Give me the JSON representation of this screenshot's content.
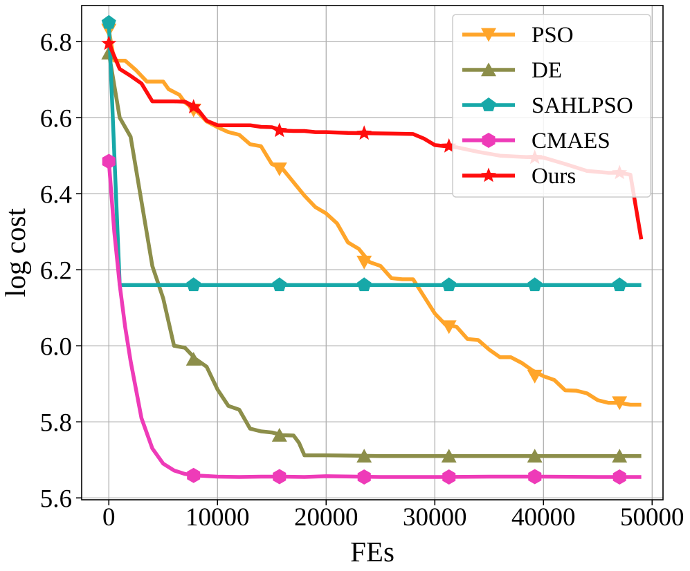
{
  "chart_data": {
    "type": "line",
    "title": "",
    "xlabel": "FEs",
    "ylabel": "log cost",
    "xlim": [
      -2500,
      51000
    ],
    "ylim": [
      5.595,
      6.895
    ],
    "grid": true,
    "legend_position": "top-right",
    "xticks": [
      0,
      10000,
      20000,
      30000,
      40000,
      50000
    ],
    "xtick_labels": [
      "0",
      "10000",
      "20000",
      "30000",
      "40000",
      "50000"
    ],
    "yticks": [
      5.6,
      5.8,
      6.0,
      6.2,
      6.4,
      6.6,
      6.8
    ],
    "ytick_labels": [
      "5.6",
      "5.8",
      "6.0",
      "6.2",
      "6.4",
      "6.6",
      "6.8"
    ],
    "series": [
      {
        "name": "PSO",
        "color": "#ffa52a",
        "marker": "triangle-down",
        "x": [
          0,
          500,
          1500,
          2500,
          3500,
          4000,
          5000,
          5500,
          6500,
          7000,
          8000,
          9000,
          10000,
          11000,
          12000,
          13000,
          14000,
          15000,
          16000,
          17000,
          18000,
          19000,
          20000,
          21000,
          22000,
          23000,
          24000,
          25000,
          26000,
          27000,
          28000,
          29000,
          30000,
          31000,
          32000,
          33000,
          34000,
          35000,
          36000,
          37000,
          38000,
          39000,
          40000,
          41000,
          42000,
          43000,
          44000,
          45000,
          46000,
          47000,
          48000,
          49000
        ],
        "values": [
          6.83,
          6.75,
          6.75,
          6.725,
          6.695,
          6.695,
          6.695,
          6.675,
          6.66,
          6.64,
          6.62,
          6.59,
          6.575,
          6.562,
          6.555,
          6.53,
          6.525,
          6.478,
          6.465,
          6.43,
          6.395,
          6.365,
          6.348,
          6.322,
          6.272,
          6.255,
          6.22,
          6.21,
          6.178,
          6.175,
          6.175,
          6.13,
          6.085,
          6.055,
          6.05,
          6.018,
          6.015,
          5.99,
          5.97,
          5.97,
          5.955,
          5.935,
          5.92,
          5.91,
          5.883,
          5.882,
          5.875,
          5.857,
          5.85,
          5.85,
          5.845,
          5.845
        ],
        "marker_x": [
          0,
          7800,
          15700,
          23500,
          31300,
          39200,
          47000
        ],
        "marker_values": [
          6.83,
          6.62,
          6.465,
          6.22,
          6.05,
          5.92,
          5.85
        ]
      },
      {
        "name": "DE",
        "color": "#8c8e4a",
        "marker": "triangle-up",
        "x": [
          0,
          1000,
          2000,
          3000,
          4000,
          5000,
          6000,
          7000,
          8000,
          9000,
          10000,
          11000,
          12000,
          13000,
          14000,
          15000,
          16000,
          17000,
          17500,
          18000,
          20000,
          25000,
          30000,
          35000,
          40000,
          45000,
          49000
        ],
        "values": [
          6.77,
          6.6,
          6.55,
          6.38,
          6.21,
          6.125,
          6.0,
          5.995,
          5.965,
          5.945,
          5.885,
          5.842,
          5.832,
          5.782,
          5.775,
          5.772,
          5.765,
          5.764,
          5.745,
          5.712,
          5.712,
          5.71,
          5.71,
          5.71,
          5.71,
          5.71,
          5.71
        ],
        "marker_x": [
          0,
          7800,
          15700,
          23500,
          31300,
          39200,
          47000
        ],
        "marker_values": [
          6.77,
          5.965,
          5.765,
          5.71,
          5.71,
          5.71,
          5.71
        ]
      },
      {
        "name": "SAHLPSO",
        "color": "#17a8a8",
        "marker": "pentagon",
        "x": [
          0,
          1000,
          2000,
          10000,
          20000,
          30000,
          40000,
          49000
        ],
        "values": [
          6.85,
          6.16,
          6.16,
          6.16,
          6.16,
          6.16,
          6.16,
          6.16
        ],
        "marker_x": [
          0,
          7800,
          15700,
          23500,
          31300,
          39200,
          47000
        ],
        "marker_values": [
          6.85,
          6.16,
          6.16,
          6.16,
          6.16,
          6.16,
          6.16
        ]
      },
      {
        "name": "CMAES",
        "color": "#ee3bb8",
        "marker": "hexagon",
        "x": [
          0,
          500,
          1000,
          1500,
          2000,
          3000,
          4000,
          5000,
          6000,
          7000,
          8000,
          10000,
          12000,
          14000,
          16000,
          18000,
          20000,
          25000,
          30000,
          35000,
          40000,
          45000,
          49000
        ],
        "values": [
          6.485,
          6.3,
          6.16,
          6.05,
          5.96,
          5.81,
          5.73,
          5.69,
          5.672,
          5.663,
          5.659,
          5.656,
          5.655,
          5.656,
          5.656,
          5.655,
          5.657,
          5.655,
          5.655,
          5.656,
          5.656,
          5.655,
          5.655
        ],
        "marker_x": [
          0,
          7800,
          15700,
          23500,
          31300,
          39200,
          47000
        ],
        "marker_values": [
          6.485,
          5.659,
          5.656,
          5.655,
          5.655,
          5.656,
          5.655
        ]
      },
      {
        "name": "Ours",
        "color": "#ff0d0d",
        "marker": "star",
        "x": [
          0,
          1000,
          2000,
          3000,
          4000,
          5000,
          6000,
          7000,
          8000,
          9000,
          10000,
          11000,
          12000,
          13000,
          14000,
          15000,
          16000,
          17000,
          18000,
          19000,
          20000,
          22000,
          24000,
          26000,
          28000,
          29000,
          30000,
          31000,
          32000,
          34000,
          36000,
          38000,
          40000,
          42000,
          44000,
          46000,
          47000,
          48000,
          49000
        ],
        "values": [
          6.795,
          6.728,
          6.71,
          6.69,
          6.643,
          6.643,
          6.643,
          6.642,
          6.628,
          6.592,
          6.58,
          6.58,
          6.58,
          6.58,
          6.576,
          6.575,
          6.566,
          6.565,
          6.565,
          6.562,
          6.562,
          6.56,
          6.559,
          6.558,
          6.557,
          6.545,
          6.528,
          6.525,
          6.522,
          6.51,
          6.5,
          6.497,
          6.495,
          6.478,
          6.46,
          6.455,
          6.455,
          6.45,
          6.28
        ],
        "marker_x": [
          0,
          7800,
          15700,
          23500,
          31300,
          39200,
          47000
        ],
        "marker_values": [
          6.795,
          6.628,
          6.566,
          6.559,
          6.525,
          6.495,
          6.455
        ]
      }
    ]
  }
}
